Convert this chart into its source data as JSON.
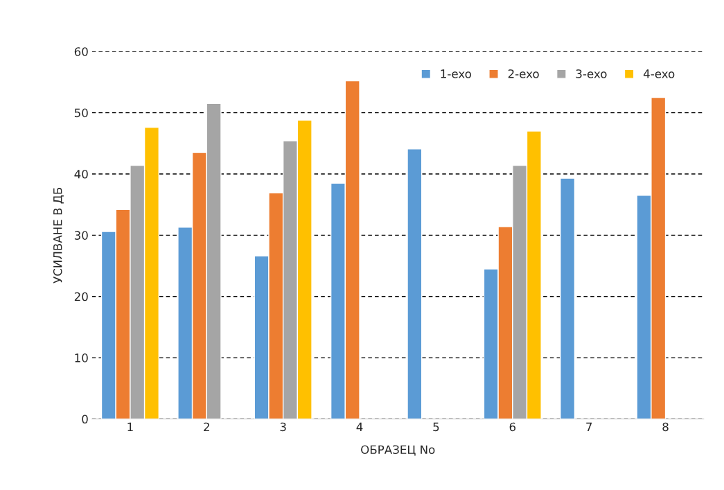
{
  "chart_data": {
    "type": "bar",
    "xlabel": "ОБРАЗЕЦ No",
    "ylabel": "УСИЛВАНЕ В ДБ",
    "categories": [
      "1",
      "2",
      "3",
      "4",
      "5",
      "6",
      "7",
      "8"
    ],
    "series": [
      {
        "name": "1-exo",
        "color": "#5b9bd5",
        "values": [
          30.6,
          31.3,
          26.6,
          38.5,
          44.1,
          24.5,
          39.3,
          36.5
        ]
      },
      {
        "name": "2-exo",
        "color": "#ed7d31",
        "values": [
          34.2,
          43.5,
          36.9,
          55.2,
          null,
          31.4,
          null,
          52.5
        ]
      },
      {
        "name": "3-exo",
        "color": "#a5a5a5",
        "values": [
          41.4,
          51.5,
          45.4,
          null,
          null,
          41.4,
          null,
          null
        ]
      },
      {
        "name": "4-exo",
        "color": "#ffc000",
        "values": [
          47.6,
          null,
          48.8,
          null,
          null,
          47.0,
          null,
          null
        ]
      }
    ],
    "ylim": [
      0,
      60
    ],
    "yticks": [
      0,
      10,
      20,
      30,
      40,
      50,
      60
    ],
    "grid": "y",
    "line_style": "dashed",
    "legend": "top right"
  }
}
